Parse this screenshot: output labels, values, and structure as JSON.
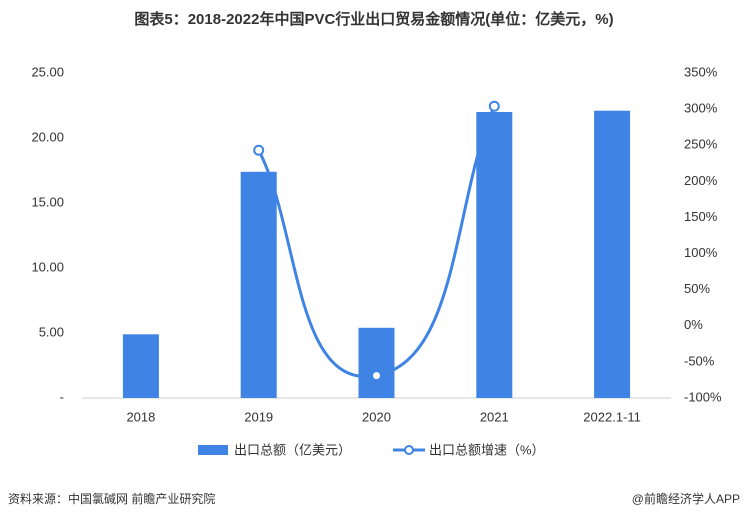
{
  "chart_data": {
    "type": "bar_line",
    "title": "图表5：2018-2022年中国PVC行业出口贸易金额情况(单位：亿美元，%)",
    "categories": [
      "2018",
      "2019",
      "2020",
      "2021",
      "2022.1-11"
    ],
    "series": [
      {
        "name": "出口总额（亿美元）",
        "type": "bar",
        "color": "#3f84e5",
        "values": [
          4.9,
          17.4,
          5.4,
          22.0,
          22.1
        ]
      },
      {
        "name": "出口总额增速（%）",
        "type": "line",
        "axis": "y2",
        "color": "#3f84e5",
        "values": [
          null,
          243,
          -69,
          304,
          null
        ]
      }
    ],
    "ylim": [
      0,
      25
    ],
    "yticks": [
      {
        "value": 0,
        "label": "-"
      },
      {
        "value": 5,
        "label": "5.00"
      },
      {
        "value": 10,
        "label": "10.00"
      },
      {
        "value": 15,
        "label": "15.00"
      },
      {
        "value": 20,
        "label": "20.00"
      },
      {
        "value": 25,
        "label": "25.00"
      }
    ],
    "y2lim": [
      -100,
      350
    ],
    "y2ticks": [
      {
        "value": -100,
        "label": "-100%"
      },
      {
        "value": -50,
        "label": "-50%"
      },
      {
        "value": 0,
        "label": "0%"
      },
      {
        "value": 50,
        "label": "50%"
      },
      {
        "value": 100,
        "label": "100%"
      },
      {
        "value": 150,
        "label": "150%"
      },
      {
        "value": 200,
        "label": "200%"
      },
      {
        "value": 250,
        "label": "250%"
      },
      {
        "value": 300,
        "label": "300%"
      },
      {
        "value": 350,
        "label": "350%"
      }
    ],
    "source": "资料来源：中国氯碱网 前瞻产业研究院",
    "credit": "@前瞻经济学人APP"
  }
}
